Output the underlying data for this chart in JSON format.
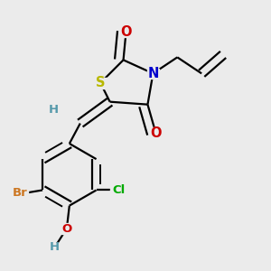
{
  "bg_color": "#ebebeb",
  "bond_color": "#000000",
  "S_color": "#b8b800",
  "N_color": "#0000cc",
  "O_color": "#cc0000",
  "Br_color": "#cc7722",
  "Cl_color": "#00aa00",
  "H_color": "#5599aa",
  "lw": 1.6,
  "doff": 0.025,
  "figsize": [
    3.0,
    3.0
  ],
  "dpi": 100,
  "xlim": [
    0.0,
    1.0
  ],
  "ylim": [
    0.0,
    1.0
  ]
}
